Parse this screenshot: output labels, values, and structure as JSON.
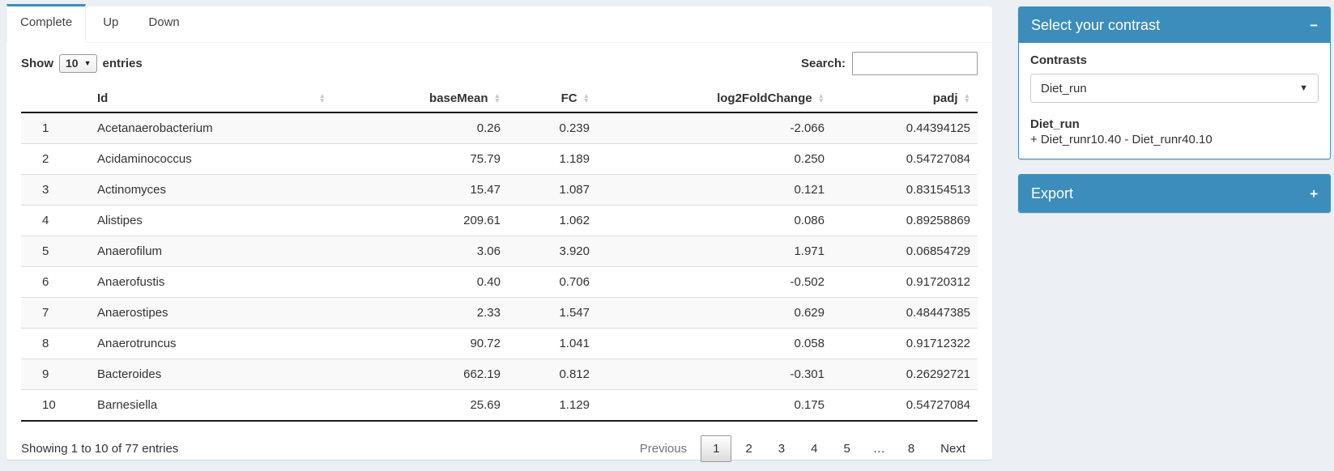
{
  "tabs": [
    {
      "label": "Complete",
      "active": true
    },
    {
      "label": "Up",
      "active": false
    },
    {
      "label": "Down",
      "active": false
    }
  ],
  "table_controls": {
    "show_label": "Show",
    "page_length": "10",
    "entries_label": "entries",
    "search_label": "Search:",
    "search_value": ""
  },
  "table": {
    "columns": [
      "Id",
      "baseMean",
      "FC",
      "log2FoldChange",
      "padj"
    ],
    "row_keys": [
      "n",
      "id",
      "baseMean",
      "fc",
      "log2fc",
      "padj"
    ],
    "rows": [
      {
        "n": "1",
        "id": "Acetanaerobacterium",
        "baseMean": "0.26",
        "fc": "0.239",
        "log2fc": "-2.066",
        "padj": "0.44394125"
      },
      {
        "n": "2",
        "id": "Acidaminococcus",
        "baseMean": "75.79",
        "fc": "1.189",
        "log2fc": "0.250",
        "padj": "0.54727084"
      },
      {
        "n": "3",
        "id": "Actinomyces",
        "baseMean": "15.47",
        "fc": "1.087",
        "log2fc": "0.121",
        "padj": "0.83154513"
      },
      {
        "n": "4",
        "id": "Alistipes",
        "baseMean": "209.61",
        "fc": "1.062",
        "log2fc": "0.086",
        "padj": "0.89258869"
      },
      {
        "n": "5",
        "id": "Anaerofilum",
        "baseMean": "3.06",
        "fc": "3.920",
        "log2fc": "1.971",
        "padj": "0.06854729"
      },
      {
        "n": "6",
        "id": "Anaerofustis",
        "baseMean": "0.40",
        "fc": "0.706",
        "log2fc": "-0.502",
        "padj": "0.91720312"
      },
      {
        "n": "7",
        "id": "Anaerostipes",
        "baseMean": "2.33",
        "fc": "1.547",
        "log2fc": "0.629",
        "padj": "0.48447385"
      },
      {
        "n": "8",
        "id": "Anaerotruncus",
        "baseMean": "90.72",
        "fc": "1.041",
        "log2fc": "0.058",
        "padj": "0.91712322"
      },
      {
        "n": "9",
        "id": "Bacteroides",
        "baseMean": "662.19",
        "fc": "0.812",
        "log2fc": "-0.301",
        "padj": "0.26292721"
      },
      {
        "n": "10",
        "id": "Barnesiella",
        "baseMean": "25.69",
        "fc": "1.129",
        "log2fc": "0.175",
        "padj": "0.54727084"
      }
    ]
  },
  "footer": {
    "info": "Showing 1 to 10 of 77 entries",
    "pagination": [
      {
        "label": "Previous",
        "state": "disabled"
      },
      {
        "label": "1",
        "state": "current"
      },
      {
        "label": "2",
        "state": "normal"
      },
      {
        "label": "3",
        "state": "normal"
      },
      {
        "label": "4",
        "state": "normal"
      },
      {
        "label": "5",
        "state": "normal"
      },
      {
        "label": "…",
        "state": "ellipsis"
      },
      {
        "label": "8",
        "state": "normal"
      },
      {
        "label": "Next",
        "state": "normal"
      }
    ]
  },
  "contrast_box": {
    "title": "Select your contrast",
    "collapse_icon": "−",
    "contrasts_label": "Contrasts",
    "selected_contrast": "Diet_run",
    "dropdown_caret": "▼",
    "contrast_name": "Diet_run",
    "contrast_formula": "+ Diet_runr10.40 - Diet_runr40.10"
  },
  "export_box": {
    "title": "Export",
    "expand_icon": "+"
  },
  "colors": {
    "primary": "#3c8dbc",
    "page_background": "#ecf0f5",
    "stripe": "#f9f9f9"
  }
}
